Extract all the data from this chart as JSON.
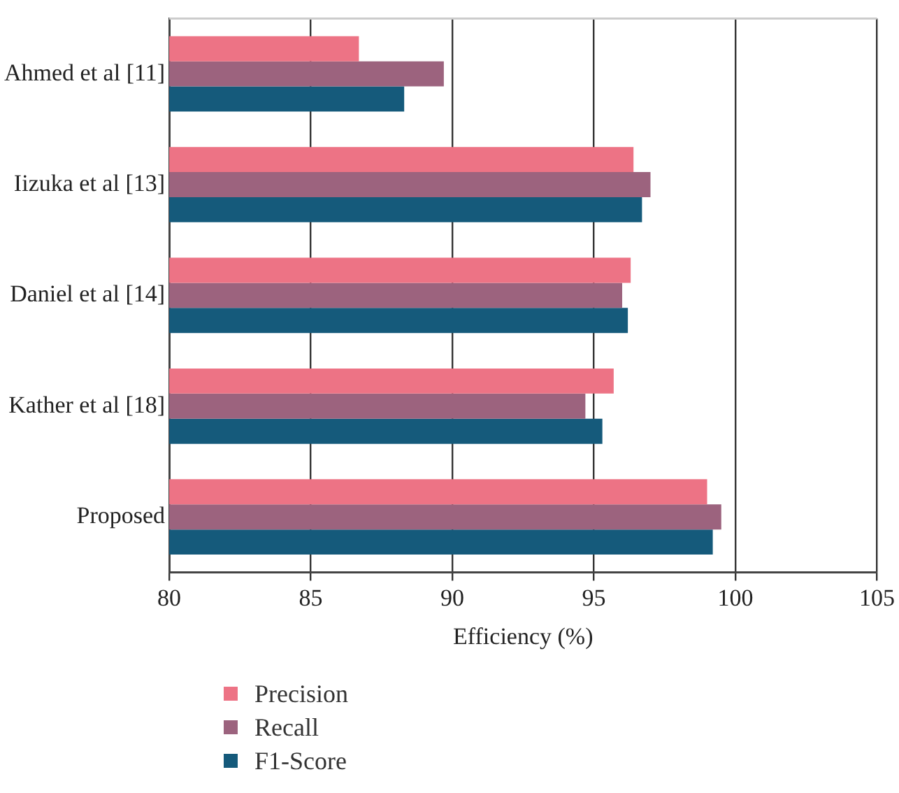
{
  "chart_data": {
    "type": "bar",
    "orientation": "horizontal",
    "xlabel": "Efficiency (%)",
    "categories": [
      "Ahmed et al [11]",
      "Iizuka et al [13]",
      "Daniel et al [14]",
      "Kather et al [18]",
      "Proposed"
    ],
    "series": [
      {
        "name": "Precision",
        "color": "#ed7385",
        "values": [
          86.7,
          96.4,
          96.3,
          95.7,
          99.0
        ]
      },
      {
        "name": "Recall",
        "color": "#9c637e",
        "values": [
          89.7,
          97.0,
          96.0,
          94.7,
          99.5
        ]
      },
      {
        "name": "F1-Score",
        "color": "#155a7b",
        "values": [
          88.3,
          96.7,
          96.2,
          95.3,
          99.2
        ]
      }
    ],
    "xlim": [
      80,
      105
    ],
    "xticks": [
      80,
      85,
      90,
      95,
      100,
      105
    ],
    "grid": "x",
    "legend": "bottom"
  }
}
